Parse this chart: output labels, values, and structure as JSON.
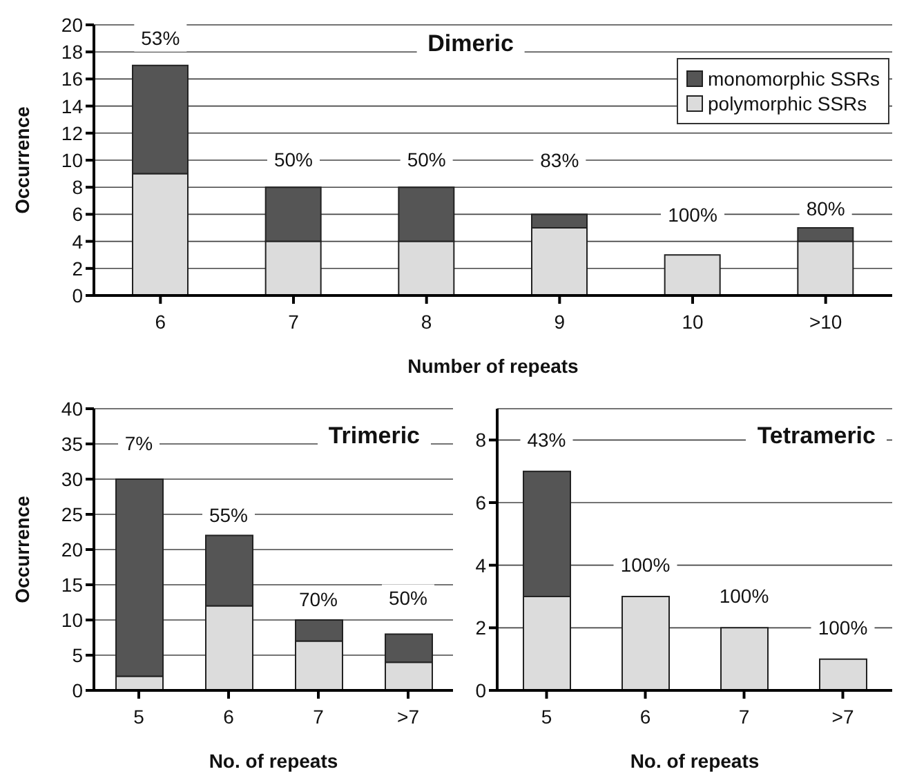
{
  "chart_data": [
    {
      "type": "bar",
      "title": "Dimeric",
      "xlabel": "Number of repeats",
      "ylabel": "Occurrence",
      "categories": [
        "6",
        "7",
        "8",
        "9",
        "10",
        ">10"
      ],
      "stacked": true,
      "series": [
        {
          "name": "polymorphic SSRs",
          "color": "#dcdcdc",
          "values": [
            9,
            4,
            4,
            5,
            3,
            4
          ]
        },
        {
          "name": "monomorphic SSRs",
          "color": "#555555",
          "values": [
            8,
            4,
            4,
            1,
            0,
            1
          ]
        }
      ],
      "ylim": [
        0,
        20
      ],
      "yticks": [
        0,
        2,
        4,
        6,
        8,
        10,
        12,
        14,
        16,
        18,
        20
      ],
      "grid": "y",
      "legend": "top right",
      "annotations": [
        "53%",
        "50%",
        "50%",
        "83%",
        "100%",
        "80%"
      ]
    },
    {
      "type": "bar",
      "title": "Trimeric",
      "xlabel": "No. of repeats",
      "ylabel": "Occurrence",
      "categories": [
        "5",
        "6",
        "7",
        ">7"
      ],
      "stacked": true,
      "series": [
        {
          "color": "#dcdcdc",
          "values": [
            2,
            12,
            7,
            4
          ]
        },
        {
          "color": "#555555",
          "values": [
            28,
            10,
            3,
            4
          ]
        }
      ],
      "ylim": [
        0,
        40
      ],
      "yticks": [
        0,
        5,
        10,
        15,
        20,
        25,
        30,
        35,
        40
      ],
      "grid": "y",
      "annotations": [
        "7%",
        "55%",
        "70%",
        "50%"
      ]
    },
    {
      "type": "bar",
      "title": "Tetrameric",
      "xlabel": "No. of repeats",
      "categories": [
        "5",
        "6",
        "7",
        ">7"
      ],
      "stacked": true,
      "series": [
        {
          "color": "#dcdcdc",
          "values": [
            3,
            3,
            2,
            1
          ]
        },
        {
          "color": "#555555",
          "values": [
            4,
            0,
            0,
            0
          ]
        }
      ],
      "ylim": [
        0,
        9
      ],
      "yticks": [
        0,
        2,
        4,
        6,
        8
      ],
      "grid": "y",
      "annotations": [
        "43%",
        "100%",
        "100%",
        "100%"
      ]
    }
  ]
}
